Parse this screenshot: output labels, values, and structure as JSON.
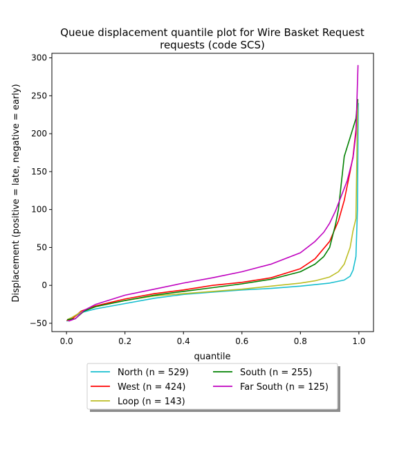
{
  "chart_data": {
    "type": "line",
    "title_lines": [
      "Queue displacement quantile plot for Wire Basket Request",
      "requests (code SCS)"
    ],
    "xlabel": "quantile",
    "ylabel": "Displacement (positive = late, negative = early)",
    "xlim": [
      -0.05,
      1.05
    ],
    "ylim": [
      -61,
      306
    ],
    "xticks": [
      0.0,
      0.2,
      0.4,
      0.6,
      0.8,
      1.0
    ],
    "xtick_labels": [
      "0.0",
      "0.2",
      "0.4",
      "0.6",
      "0.8",
      "1.0"
    ],
    "yticks": [
      -50,
      0,
      50,
      100,
      150,
      200,
      250,
      300
    ],
    "ytick_labels": [
      "−50",
      "0",
      "50",
      "100",
      "150",
      "200",
      "250",
      "300"
    ],
    "grid": false,
    "legend_position": "below plot, two columns, shadowed",
    "series": [
      {
        "name": "North (n = 529)",
        "color": "#17becf",
        "x": [
          0.002,
          0.05,
          0.1,
          0.2,
          0.3,
          0.4,
          0.5,
          0.6,
          0.7,
          0.8,
          0.9,
          0.95,
          0.97,
          0.98,
          0.99,
          0.995,
          0.998
        ],
        "y": [
          -47,
          -36,
          -31,
          -24,
          -17,
          -12,
          -9,
          -6,
          -4,
          -1,
          3,
          7,
          12,
          20,
          38,
          100,
          240
        ]
      },
      {
        "name": "West (n = 424)",
        "color": "#ff0000",
        "x": [
          0.002,
          0.02,
          0.05,
          0.1,
          0.2,
          0.3,
          0.4,
          0.5,
          0.6,
          0.7,
          0.8,
          0.85,
          0.9,
          0.93,
          0.95,
          0.97,
          0.98,
          0.99,
          0.995
        ],
        "y": [
          -46,
          -44,
          -34,
          -27,
          -18,
          -11,
          -6,
          0,
          4,
          10,
          22,
          35,
          58,
          85,
          112,
          150,
          170,
          205,
          240
        ]
      },
      {
        "name": "Loop (n = 143)",
        "color": "#bcbd22",
        "x": [
          0.004,
          0.02,
          0.05,
          0.1,
          0.2,
          0.3,
          0.4,
          0.5,
          0.6,
          0.7,
          0.8,
          0.85,
          0.9,
          0.93,
          0.95,
          0.97,
          0.98,
          0.99,
          0.996
        ],
        "y": [
          -45,
          -42,
          -35,
          -28,
          -20,
          -14,
          -11,
          -8,
          -5,
          -1,
          3,
          6,
          11,
          18,
          28,
          50,
          72,
          88,
          245
        ]
      },
      {
        "name": "South (n = 255)",
        "color": "#008000",
        "x": [
          0.004,
          0.03,
          0.06,
          0.1,
          0.2,
          0.3,
          0.4,
          0.5,
          0.6,
          0.7,
          0.8,
          0.85,
          0.88,
          0.9,
          0.92,
          0.93,
          0.95,
          0.97,
          0.99,
          0.996
        ],
        "y": [
          -45,
          -44,
          -34,
          -28,
          -20,
          -13,
          -8,
          -3,
          2,
          8,
          18,
          28,
          38,
          50,
          80,
          100,
          170,
          195,
          220,
          245
        ]
      },
      {
        "name": "Far South (n = 125)",
        "color": "#bf00bf",
        "x": [
          0.008,
          0.03,
          0.06,
          0.1,
          0.2,
          0.3,
          0.4,
          0.5,
          0.6,
          0.7,
          0.8,
          0.85,
          0.88,
          0.9,
          0.92,
          0.94,
          0.96,
          0.98,
          0.99,
          0.997
        ],
        "y": [
          -47,
          -44,
          -33,
          -25,
          -13,
          -5,
          3,
          10,
          18,
          28,
          43,
          58,
          70,
          82,
          98,
          118,
          138,
          168,
          200,
          290
        ]
      }
    ]
  }
}
